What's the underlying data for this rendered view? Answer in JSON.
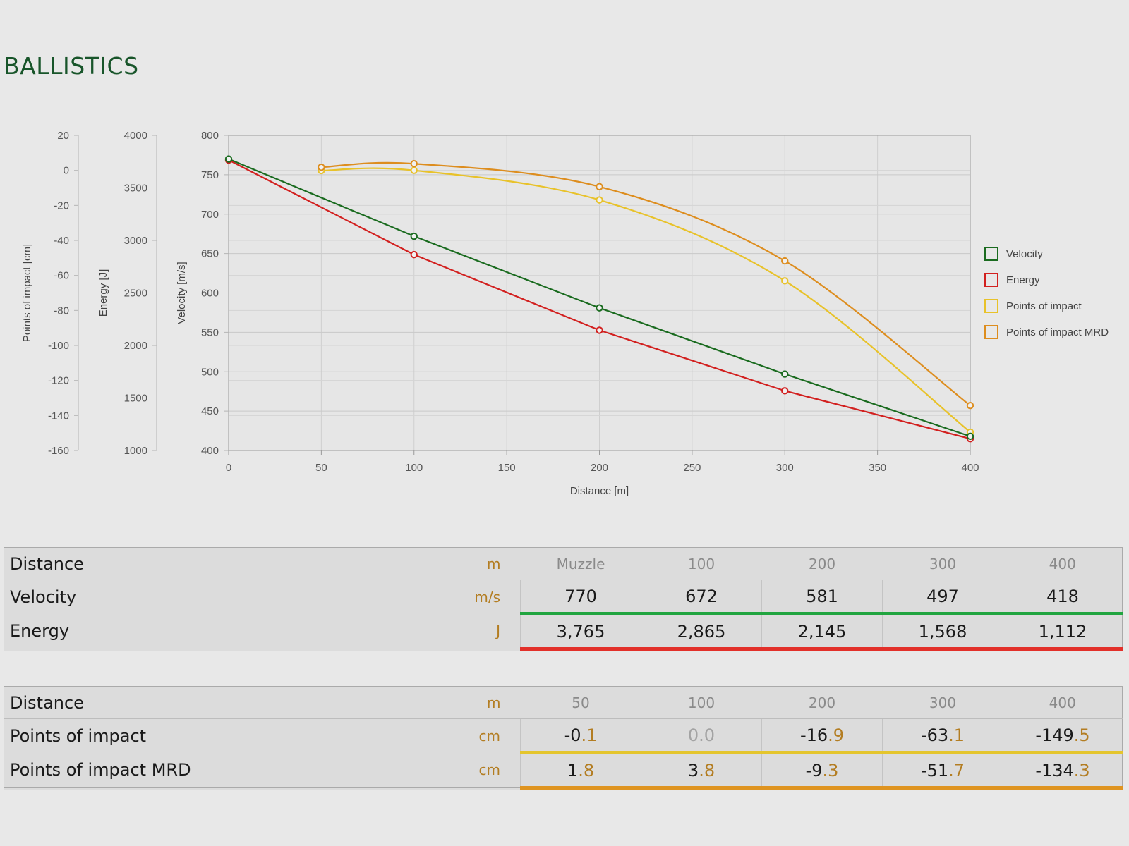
{
  "page": {
    "title": "BALLISTICS"
  },
  "chart_data": {
    "type": "line",
    "xlabel": "Distance [m]",
    "xlim": [
      0,
      400
    ],
    "x_ticks": [
      "0",
      "50",
      "100",
      "150",
      "200",
      "250",
      "300",
      "350",
      "400"
    ],
    "grid": true,
    "legend_position": "right",
    "axes": [
      {
        "id": "velocity",
        "label": "Velocity [m/s]",
        "range": [
          400,
          800
        ],
        "ticks": [
          "400",
          "450",
          "500",
          "550",
          "600",
          "650",
          "700",
          "750",
          "800"
        ]
      },
      {
        "id": "energy",
        "label": "Energy [J]",
        "range": [
          1000,
          4000
        ],
        "ticks": [
          "1000",
          "1500",
          "2000",
          "2500",
          "3000",
          "3500",
          "4000"
        ]
      },
      {
        "id": "poi",
        "label": "Points of impact [cm]",
        "range": [
          -160,
          20
        ],
        "ticks": [
          "-160",
          "-140",
          "-120",
          "-100",
          "-80",
          "-60",
          "-40",
          "-20",
          "0",
          "20"
        ]
      }
    ],
    "series": [
      {
        "name": "Velocity",
        "axis": "velocity",
        "color": "#1a6b1f",
        "smooth": false,
        "x": [
          0,
          100,
          200,
          300,
          400
        ],
        "values": [
          770,
          672,
          581,
          497,
          418
        ]
      },
      {
        "name": "Energy",
        "axis": "energy",
        "color": "#d2201f",
        "smooth": false,
        "x": [
          0,
          100,
          200,
          300,
          400
        ],
        "values": [
          3765,
          2865,
          2145,
          1568,
          1112
        ]
      },
      {
        "name": "Points of impact",
        "axis": "poi",
        "color": "#e8c22a",
        "smooth": true,
        "x": [
          50,
          100,
          200,
          300,
          400
        ],
        "values": [
          -0.1,
          0.0,
          -16.9,
          -63.1,
          -149.5
        ]
      },
      {
        "name": "Points of impact MRD",
        "axis": "poi",
        "color": "#dd8d1e",
        "smooth": true,
        "x": [
          50,
          100,
          200,
          300,
          400
        ],
        "values": [
          1.8,
          3.8,
          -9.3,
          -51.7,
          -134.3
        ]
      }
    ]
  },
  "table1": {
    "rows": [
      {
        "label": "Distance",
        "unit": "m",
        "values": [
          "Muzzle",
          "100",
          "200",
          "300",
          "400"
        ]
      },
      {
        "label": "Velocity",
        "unit": "m/s",
        "values": [
          "770",
          "672",
          "581",
          "497",
          "418"
        ]
      },
      {
        "label": "Energy",
        "unit": "J",
        "values": [
          "3,765",
          "2,865",
          "2,145",
          "1,568",
          "1,112"
        ]
      }
    ]
  },
  "table2": {
    "rows": [
      {
        "label": "Distance",
        "unit": "m",
        "values": [
          "50",
          "100",
          "200",
          "300",
          "400"
        ]
      },
      {
        "label": "Points of impact",
        "unit": "cm",
        "values": [
          "-0.1",
          "0.0",
          "-16.9",
          "-63.1",
          "-149.5"
        ]
      },
      {
        "label": "Points of impact MRD",
        "unit": "cm",
        "values": [
          "1.8",
          "3.8",
          "-9.3",
          "-51.7",
          "-134.3"
        ]
      }
    ]
  }
}
